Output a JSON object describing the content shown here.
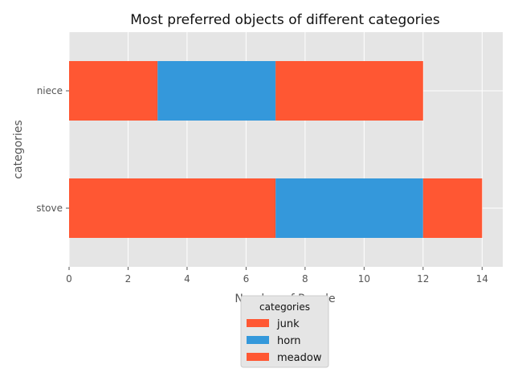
{
  "chart_data": {
    "type": "bar",
    "orientation": "horizontal",
    "stacked": true,
    "title": "Most preferred objects of different categories",
    "xlabel": "Number of People",
    "ylabel": "categories",
    "categories": [
      "stove",
      "niece"
    ],
    "series": [
      {
        "name": "junk",
        "values": [
          7,
          3
        ],
        "color": "#ff5733"
      },
      {
        "name": "horn",
        "values": [
          5,
          4
        ],
        "color": "#3498db"
      },
      {
        "name": "meadow",
        "values": [
          2,
          5
        ],
        "color": "#ff5733"
      }
    ],
    "xlim": [
      0,
      14.7
    ],
    "xticks": [
      0,
      2,
      4,
      6,
      8,
      10,
      12,
      14
    ],
    "grid": true,
    "legend": {
      "title": "categories",
      "placement": "below chart"
    }
  }
}
